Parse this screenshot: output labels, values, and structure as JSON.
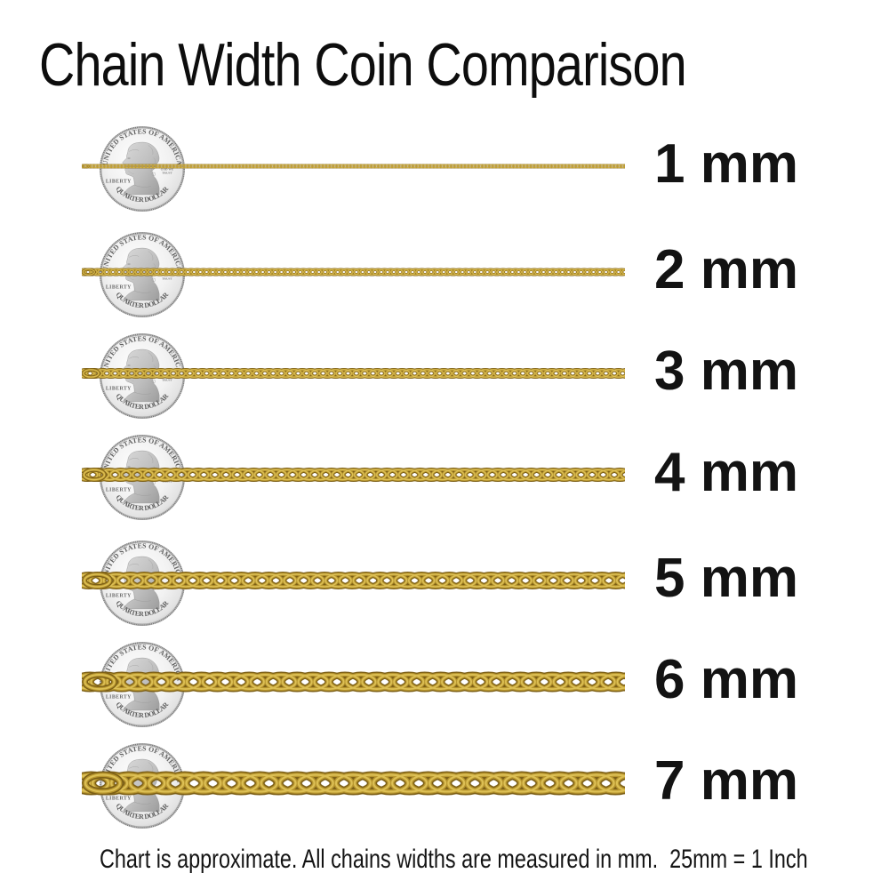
{
  "title": "Chain Width Coin Comparison",
  "footer_note": "Chart is approximate. All chains widths are measured in mm.  25mm = 1 Inch",
  "coin": {
    "top_text": "UNITED STATES OF AMERICA",
    "bottom_text": "QUARTER DOLLAR",
    "left_text": "LIBERTY",
    "motto_line1": "GOD WE",
    "motto_line2": "TRUST"
  },
  "rows": [
    {
      "label": "1 mm",
      "width_mm": 1
    },
    {
      "label": "2 mm",
      "width_mm": 2
    },
    {
      "label": "3 mm",
      "width_mm": 3
    },
    {
      "label": "4 mm",
      "width_mm": 4
    },
    {
      "label": "5 mm",
      "width_mm": 5
    },
    {
      "label": "6 mm",
      "width_mm": 6
    },
    {
      "label": "7 mm",
      "width_mm": 7
    }
  ],
  "colors": {
    "chain_gold_dark": "#7c5f16",
    "chain_gold_mid": "#b8962e",
    "chain_gold_light": "#ddc055",
    "coin_silver": "#e9e9e9",
    "text_black": "#111111"
  },
  "chart_data": {
    "type": "table",
    "title": "Chain Width Coin Comparison",
    "categories": [
      "1 mm",
      "2 mm",
      "3 mm",
      "4 mm",
      "5 mm",
      "6 mm",
      "7 mm"
    ],
    "values": [
      1,
      2,
      3,
      4,
      5,
      6,
      7
    ],
    "unit": "mm",
    "note": "Chart is approximate. All chains widths are measured in mm.  25mm = 1 Inch"
  }
}
